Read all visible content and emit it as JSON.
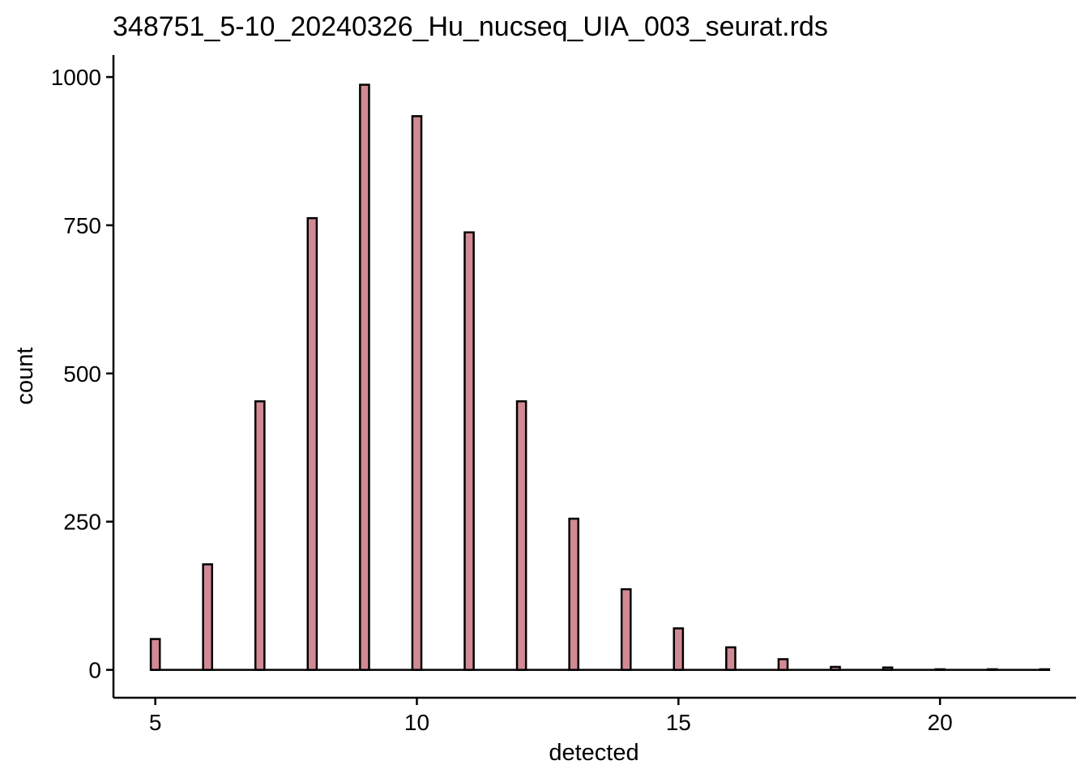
{
  "chart_data": {
    "type": "bar",
    "title": "348751_5-10_20240326_Hu_nucseq_UIA_003_seurat.rds",
    "xlabel": "detected",
    "ylabel": "count",
    "xlim": [
      4.2,
      22.6
    ],
    "ylim": [
      -47,
      1037
    ],
    "x_ticks": [
      5,
      10,
      15,
      20
    ],
    "y_ticks": [
      0,
      250,
      500,
      750,
      1000
    ],
    "bin_width": 0.1724,
    "x": [
      5,
      6,
      7,
      8,
      9,
      10,
      11,
      12,
      13,
      14,
      15,
      16,
      17,
      18,
      19,
      20,
      21,
      22
    ],
    "values": [
      52,
      178,
      453,
      762,
      987,
      934,
      738,
      453,
      255,
      136,
      70,
      38,
      18,
      5,
      4,
      1,
      1,
      1
    ],
    "fill_color": "#d18a94",
    "edge_color": "#000000",
    "grid": false,
    "legend": "none"
  }
}
